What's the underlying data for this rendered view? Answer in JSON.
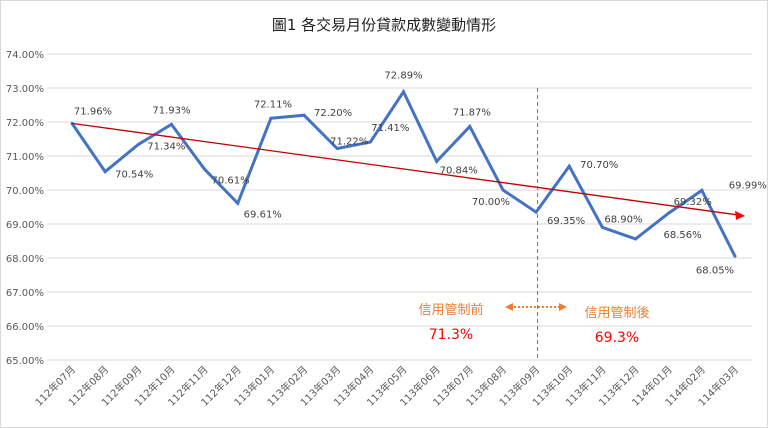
{
  "chart_data": {
    "type": "line",
    "title": "圖1 各交易月份貸款成數變動情形",
    "categories": [
      "112年07月",
      "112年08月",
      "112年09月",
      "112年10月",
      "112年11月",
      "112年12月",
      "113年01月",
      "113年02月",
      "113年03月",
      "113年04月",
      "113年05月",
      "113年06月",
      "113年07月",
      "113年08月",
      "113年09月",
      "113年10月",
      "113年11月",
      "113年12月",
      "114年01月",
      "114年02月",
      "114年03月"
    ],
    "values": [
      71.96,
      70.54,
      71.34,
      71.93,
      70.61,
      69.61,
      72.11,
      72.2,
      71.22,
      71.41,
      72.89,
      70.84,
      71.87,
      70.0,
      69.35,
      70.7,
      68.9,
      68.56,
      69.32,
      69.99,
      68.05
    ],
    "data_labels": [
      "71.96%",
      "70.54%",
      "71.34%",
      "71.93%",
      "70.61%",
      "69.61%",
      "72.11%",
      "72.20%",
      "71.22%",
      "71.41%",
      "72.89%",
      "70.84%",
      "71.87%",
      "70.00%",
      "69.35%",
      "70.70%",
      "68.90%",
      "68.56%",
      "69.32%",
      "69.99%",
      "68.05%"
    ],
    "ylim": [
      65,
      74
    ],
    "yticks": [
      "65.00%",
      "66.00%",
      "67.00%",
      "68.00%",
      "69.00%",
      "70.00%",
      "71.00%",
      "72.00%",
      "73.00%",
      "74.00%"
    ],
    "grid": true,
    "series_color": "#4472c4",
    "trendline": {
      "color": "#c00000",
      "from": 71.96,
      "to": 69.27
    },
    "divider": {
      "after_category": "113年09月",
      "color": "#00b050"
    },
    "annotations": {
      "before_label": "信用管制前",
      "before_value": "71.3%",
      "after_label": "信用管制後",
      "after_value": "69.3%",
      "label_color": "#ed7d31",
      "value_color": "#ff0000"
    }
  }
}
